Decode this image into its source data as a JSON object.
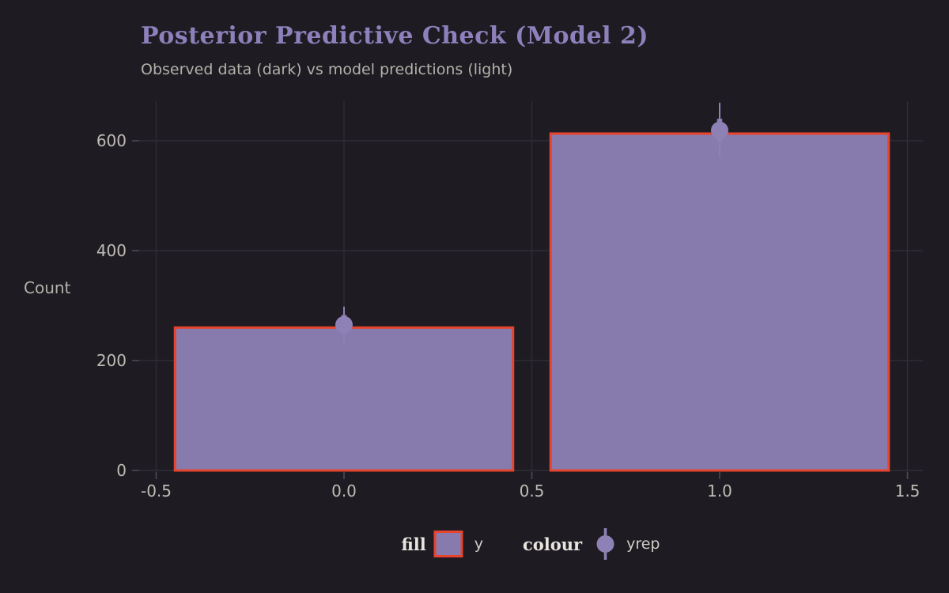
{
  "title": "Posterior Predictive Check (Model 2)",
  "subtitle": "Observed data (dark) vs model predictions (light)",
  "y_axis_label": "Count",
  "legend": {
    "fill_title": "fill",
    "fill_item": "y",
    "colour_title": "colour",
    "colour_item": "yrep"
  },
  "colors": {
    "background": "#1e1c22",
    "title": "#8d80bb",
    "subtitle": "#b4b1aa",
    "axis_text": "#bfbcb5",
    "gridline": "#2e2c34",
    "tick_mark": "#4b4953",
    "bar_fill": "#867bac",
    "bar_border": "#e8432e",
    "point": "#8d81b6",
    "legend_title": "#e8e5df",
    "legend_text": "#cfccc5"
  },
  "chart_data": {
    "type": "bar",
    "title": "Posterior Predictive Check (Model 2)",
    "subtitle": "Observed data (dark) vs model predictions (light)",
    "xlabel": "",
    "ylabel": "Count",
    "categories": [
      0,
      1
    ],
    "bar_width": 0.9,
    "x_ticks": [
      -0.5,
      0.0,
      0.5,
      1.0,
      1.5
    ],
    "x_tick_labels": [
      "-0.5",
      "0.0",
      "0.5",
      "1.0",
      "1.5"
    ],
    "y_ticks": [
      0,
      200,
      400,
      600
    ],
    "y_tick_labels": [
      "0",
      "200",
      "400",
      "600"
    ],
    "xlim": [
      -0.545,
      1.545
    ],
    "ylim": [
      0,
      675
    ],
    "grid": true,
    "legend_position": "bottom",
    "series": [
      {
        "name": "y",
        "type": "bar",
        "values": [
          260,
          613
        ]
      },
      {
        "name": "yrep",
        "type": "pointinterval",
        "points": [
          265,
          619
        ],
        "interval50": [
          [
            248,
            283
          ],
          [
            599,
            640
          ]
        ],
        "interval95": [
          [
            233,
            298
          ],
          [
            570,
            669
          ]
        ]
      }
    ]
  }
}
